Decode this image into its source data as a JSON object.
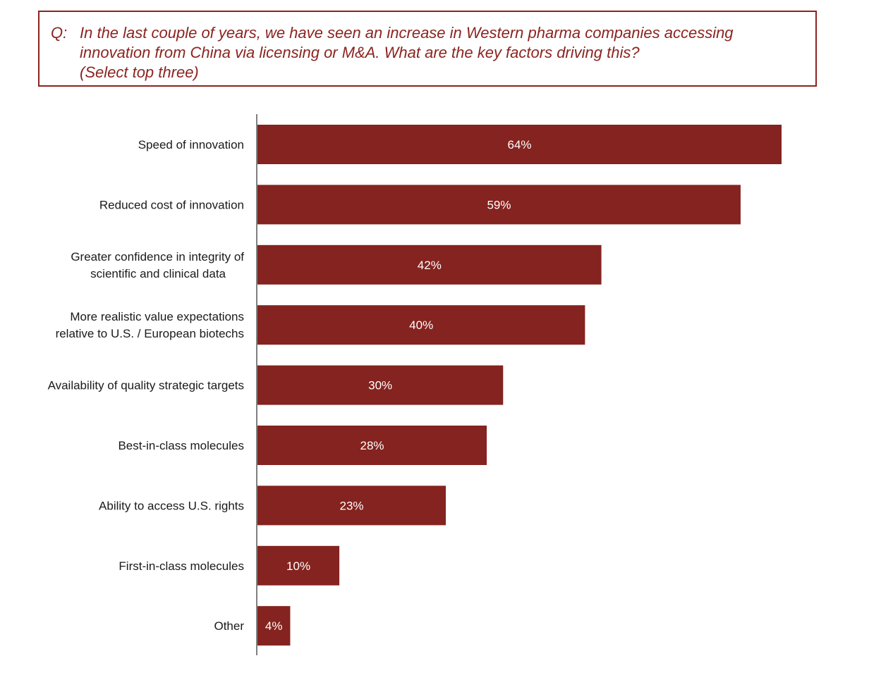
{
  "question": {
    "prefix": "Q:",
    "text": "In the last couple of years, we have seen an increase in Western pharma companies accessing\ninnovation from China via licensing or M&A. What are the key factors driving this?\n(Select top three)"
  },
  "colors": {
    "bar": "#84231f",
    "border": "#8b2420",
    "text": "#1a1a1a"
  },
  "chart_data": {
    "type": "bar",
    "orientation": "horizontal",
    "categories": [
      [
        "Speed of innovation"
      ],
      [
        "Reduced cost of innovation"
      ],
      [
        "Greater confidence in integrity of",
        "scientific and clinical data"
      ],
      [
        "More realistic value expectations",
        "relative to U.S. / European biotechs"
      ],
      [
        "Availability of quality strategic targets"
      ],
      [
        "Best-in-class molecules"
      ],
      [
        "Ability to access U.S. rights"
      ],
      [
        "First-in-class molecules"
      ],
      [
        "Other"
      ]
    ],
    "values": [
      64,
      59,
      42,
      40,
      30,
      28,
      23,
      10,
      4
    ],
    "value_labels": [
      "64%",
      "59%",
      "42%",
      "40%",
      "30%",
      "28%",
      "23%",
      "10%",
      "4%"
    ],
    "xlim": [
      0,
      64
    ],
    "grid": false
  }
}
